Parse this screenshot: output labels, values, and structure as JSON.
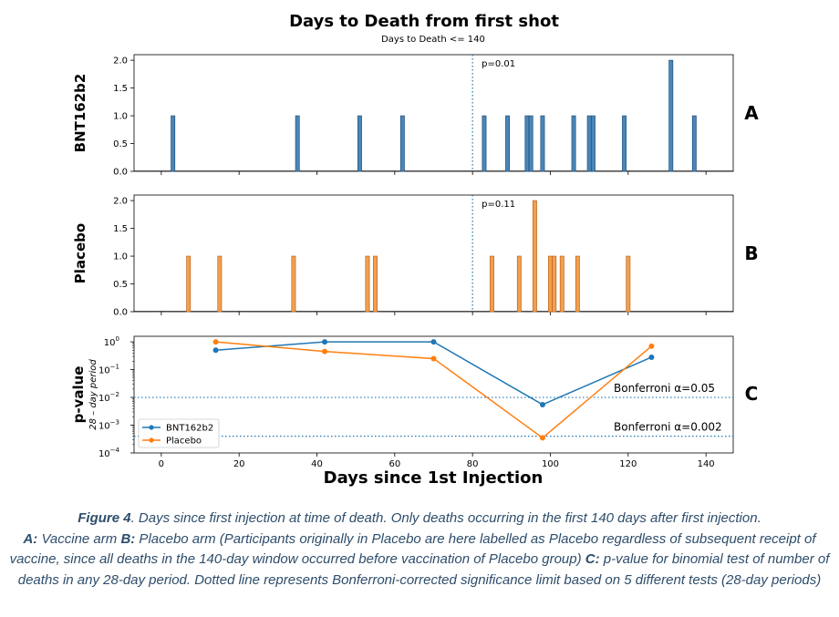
{
  "chart_data": {
    "type": "bar",
    "title": "Days to Death from first shot",
    "subtitle": "Days to Death <= 140",
    "xlabel": "Days since 1st Injection",
    "xlim": [
      -7,
      147
    ],
    "x_ticks": [
      0,
      20,
      40,
      60,
      80,
      100,
      120,
      140
    ],
    "panels": [
      {
        "letter": "A",
        "ylabel": "BNT162b2",
        "color": "#1f77b4",
        "fill": "#4a86b8",
        "ylim": [
          0,
          2.1
        ],
        "y_ticks": [
          "0.0",
          "0.5",
          "1.0",
          "1.5",
          "2.0"
        ],
        "vline_x": 80,
        "annotation": "p=0.01",
        "bars": [
          {
            "x": 3,
            "count": 1
          },
          {
            "x": 35,
            "count": 1
          },
          {
            "x": 51,
            "count": 1
          },
          {
            "x": 62,
            "count": 1
          },
          {
            "x": 83,
            "count": 1
          },
          {
            "x": 89,
            "count": 1
          },
          {
            "x": 94,
            "count": 1
          },
          {
            "x": 95,
            "count": 1
          },
          {
            "x": 98,
            "count": 1
          },
          {
            "x": 106,
            "count": 1
          },
          {
            "x": 110,
            "count": 1
          },
          {
            "x": 111,
            "count": 1
          },
          {
            "x": 119,
            "count": 1
          },
          {
            "x": 131,
            "count": 2
          },
          {
            "x": 137,
            "count": 1
          }
        ]
      },
      {
        "letter": "B",
        "ylabel": "Placebo",
        "color": "#ff7f0e",
        "fill": "#f0a050",
        "ylim": [
          0,
          2.1
        ],
        "y_ticks": [
          "0.0",
          "0.5",
          "1.0",
          "1.5",
          "2.0"
        ],
        "vline_x": 80,
        "annotation": "p=0.11",
        "bars": [
          {
            "x": 7,
            "count": 1
          },
          {
            "x": 15,
            "count": 1
          },
          {
            "x": 34,
            "count": 1
          },
          {
            "x": 53,
            "count": 1
          },
          {
            "x": 55,
            "count": 1
          },
          {
            "x": 85,
            "count": 1
          },
          {
            "x": 92,
            "count": 1
          },
          {
            "x": 96,
            "count": 2
          },
          {
            "x": 100,
            "count": 1
          },
          {
            "x": 101,
            "count": 1
          },
          {
            "x": 103,
            "count": 1
          },
          {
            "x": 107,
            "count": 1
          },
          {
            "x": 120,
            "count": 1
          }
        ]
      }
    ],
    "pvalue_panel": {
      "letter": "C",
      "ylabel": "p-value",
      "ylabel_sub": "28 – day period",
      "type": "line",
      "scale": "log",
      "ylim_log10": [
        -4,
        0.2
      ],
      "y_ticks": [
        {
          "exp": 0,
          "label": "10",
          "sup": "0"
        },
        {
          "exp": -1,
          "label": "10",
          "sup": "−1"
        },
        {
          "exp": -2,
          "label": "10",
          "sup": "−2"
        },
        {
          "exp": -3,
          "label": "10",
          "sup": "−3"
        },
        {
          "exp": -4,
          "label": "10",
          "sup": "−4"
        }
      ],
      "series": [
        {
          "name": "BNT162b2",
          "color": "#1f77b4",
          "x": [
            14,
            42,
            70,
            98,
            126
          ],
          "y": [
            0.5,
            1.0,
            1.0,
            0.0055,
            0.28
          ]
        },
        {
          "name": "Placebo",
          "color": "#ff7f0e",
          "x": [
            14,
            42,
            70,
            98,
            126
          ],
          "y": [
            1.0,
            0.45,
            0.25,
            0.00035,
            0.7
          ]
        }
      ],
      "thresholds": [
        {
          "value": 0.01,
          "label": "Bonferroni α=0.05"
        },
        {
          "value": 0.0004,
          "label": "Bonferroni α=0.002"
        }
      ],
      "legend": "bottom-left"
    }
  },
  "caption": {
    "fig_label": "Figure 4",
    "line1": ". Days since first injection at time of death. Only deaths occurring in the first 140 days after first injection.",
    "a_label": "A:",
    "a_text": " Vaccine arm ",
    "b_label": "B:",
    "b_text": " Placebo arm (Participants originally in Placebo are here labelled as Placebo regardless of subsequent receipt of vaccine, since all deaths in the 140-day window occurred before vaccination of Placebo group) ",
    "c_label": "C:",
    "c_text": " p-value for binomial test of number of deaths in any 28-day period. Dotted line represents Bonferroni-corrected significance limit based on 5 different tests (28-day periods)"
  }
}
